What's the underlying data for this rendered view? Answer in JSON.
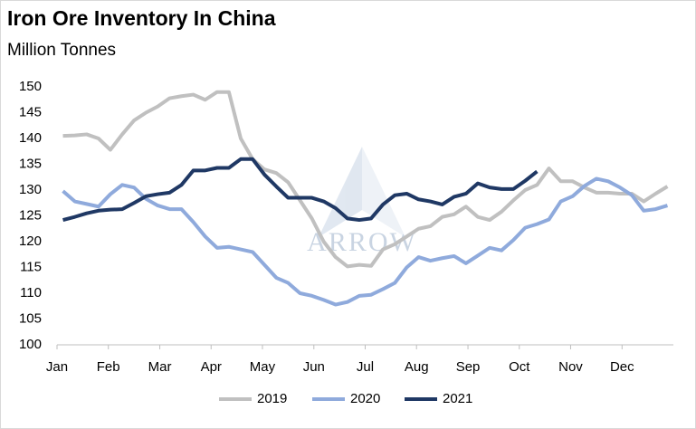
{
  "chart_data": {
    "type": "line",
    "title": "Iron Ore Inventory In China",
    "subtitle": "Million Tonnes",
    "watermark": "ARROW",
    "x": [
      1,
      2,
      3,
      4,
      5,
      6,
      7,
      8,
      9,
      10,
      11,
      12,
      13,
      14,
      15,
      16,
      17,
      18,
      19,
      20,
      21,
      22,
      23,
      24,
      25,
      26,
      27,
      28,
      29,
      30,
      31,
      32,
      33,
      34,
      35,
      36,
      37,
      38,
      39,
      40,
      41,
      42,
      43,
      44,
      45,
      46,
      47,
      48,
      49,
      50,
      51,
      52
    ],
    "xlim": [
      0.5,
      52.5
    ],
    "xticks": [
      {
        "value": 0.5,
        "label": "Jan"
      },
      {
        "value": 4.83,
        "label": "Feb"
      },
      {
        "value": 9.17,
        "label": "Mar"
      },
      {
        "value": 13.5,
        "label": "Apr"
      },
      {
        "value": 17.83,
        "label": "May"
      },
      {
        "value": 22.17,
        "label": "Jun"
      },
      {
        "value": 26.5,
        "label": "Jul"
      },
      {
        "value": 30.83,
        "label": "Aug"
      },
      {
        "value": 35.17,
        "label": "Sep"
      },
      {
        "value": 39.5,
        "label": "Oct"
      },
      {
        "value": 43.83,
        "label": "Nov"
      },
      {
        "value": 48.17,
        "label": "Dec"
      }
    ],
    "ylim": [
      100,
      150
    ],
    "yticks": [
      100,
      105,
      110,
      115,
      120,
      125,
      130,
      135,
      140,
      145,
      150
    ],
    "grid": false,
    "legend": "bottom",
    "series": [
      {
        "name": "2019",
        "color": "#c0c0c0",
        "values": [
          140.5,
          140.6,
          140.8,
          140,
          137.8,
          140.8,
          143.5,
          145,
          146.2,
          147.8,
          148.2,
          148.5,
          147.5,
          149,
          149,
          140,
          136,
          134,
          133.3,
          131.5,
          128,
          124.5,
          120,
          117,
          115.2,
          115.5,
          115.3,
          118.5,
          119.5,
          121,
          122.5,
          123,
          124.8,
          125.3,
          126.8,
          124.8,
          124.2,
          125.8,
          128,
          130,
          131,
          134.2,
          131.7,
          131.7,
          130.5,
          129.5,
          129.5,
          129.3,
          129.3,
          127.8,
          129.3,
          130.7
        ]
      },
      {
        "name": "2020",
        "color": "#8faadc",
        "values": [
          129.8,
          127.8,
          127.3,
          126.8,
          129.2,
          131,
          130.5,
          128.3,
          127,
          126.3,
          126.3,
          123.8,
          121,
          118.8,
          119,
          118.5,
          118,
          115.5,
          113,
          112,
          110,
          109.5,
          108.7,
          107.8,
          108.3,
          109.5,
          109.7,
          110.8,
          112,
          115,
          117,
          116.3,
          116.8,
          117.2,
          115.8,
          117.3,
          118.8,
          118.3,
          120.3,
          122.7,
          123.4,
          124.3,
          127.8,
          128.8,
          130.8,
          132.2,
          131.7,
          130.5,
          129,
          126,
          126.3,
          127
        ]
      },
      {
        "name": "2021",
        "color": "#1f3864",
        "values": [
          124.2,
          124.8,
          125.5,
          126,
          126.2,
          126.3,
          127.5,
          128.8,
          129.2,
          129.5,
          131,
          133.8,
          133.8,
          134.3,
          134.3,
          136,
          136,
          133,
          130.7,
          128.5,
          128.5,
          128.5,
          127.8,
          126.5,
          124.5,
          124.2,
          124.5,
          127.2,
          129,
          129.3,
          128.2,
          127.8,
          127.2,
          128.7,
          129.3,
          131.3,
          130.5,
          130.2,
          130.2,
          131.8,
          133.6,
          null,
          null,
          null,
          null,
          null,
          null,
          null,
          null,
          null,
          null,
          null
        ]
      }
    ]
  }
}
